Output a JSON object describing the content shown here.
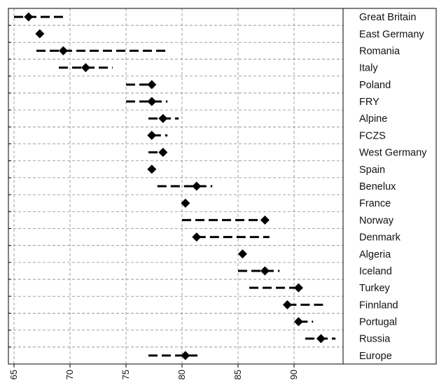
{
  "chart_data": {
    "type": "scatter",
    "title": "",
    "xlabel": "",
    "ylabel": "",
    "xlim": [
      65,
      95
    ],
    "x_ticks": [
      "65",
      "70",
      "75",
      "80",
      "85",
      "90"
    ],
    "grid": {
      "vertical": true,
      "horizontal": true,
      "style": "dashed"
    },
    "marker": "diamond",
    "colors": {
      "marker": "#000000",
      "interval": "#000000",
      "grid": "#888888",
      "frame": "#000000"
    },
    "rows": [
      {
        "label": "Great Britain",
        "point": 66.3,
        "interval": [
          65.0,
          69.7
        ]
      },
      {
        "label": "East Germany",
        "point": 67.3,
        "interval": [
          67.3,
          67.3
        ]
      },
      {
        "label": "Romania",
        "point": 69.4,
        "interval": [
          67.0,
          78.7
        ]
      },
      {
        "label": "Italy",
        "point": 71.4,
        "interval": [
          69.0,
          73.8
        ]
      },
      {
        "label": "Poland",
        "point": 77.3,
        "interval": [
          75.0,
          77.3
        ]
      },
      {
        "label": "FRY",
        "point": 77.3,
        "interval": [
          75.0,
          78.7
        ]
      },
      {
        "label": "Alpine",
        "point": 78.3,
        "interval": [
          77.0,
          79.7
        ]
      },
      {
        "label": "FCZS",
        "point": 77.3,
        "interval": [
          77.3,
          78.7
        ]
      },
      {
        "label": "West Germany",
        "point": 78.3,
        "interval": [
          77.0,
          78.3
        ]
      },
      {
        "label": "Spain",
        "point": 77.3,
        "interval": [
          77.3,
          77.3
        ]
      },
      {
        "label": "Benelux",
        "point": 81.3,
        "interval": [
          77.8,
          82.7
        ]
      },
      {
        "label": "France",
        "point": 80.3,
        "interval": [
          80.3,
          80.3
        ]
      },
      {
        "label": "Norway",
        "point": 87.4,
        "interval": [
          80.0,
          87.4
        ]
      },
      {
        "label": "Denmark",
        "point": 81.3,
        "interval": [
          81.3,
          87.8
        ]
      },
      {
        "label": "Algeria",
        "point": 85.4,
        "interval": [
          85.4,
          85.4
        ]
      },
      {
        "label": "Iceland",
        "point": 87.4,
        "interval": [
          85.0,
          88.7
        ]
      },
      {
        "label": "Turkey",
        "point": 90.4,
        "interval": [
          86.0,
          90.4
        ]
      },
      {
        "label": "Finnland",
        "point": 89.4,
        "interval": [
          89.4,
          92.7
        ]
      },
      {
        "label": "Portugal",
        "point": 90.4,
        "interval": [
          90.4,
          91.7
        ]
      },
      {
        "label": "Russia",
        "point": 92.4,
        "interval": [
          91.0,
          93.7
        ]
      },
      {
        "label": "Europe",
        "point": 80.3,
        "interval": [
          77.0,
          81.5
        ]
      }
    ]
  }
}
